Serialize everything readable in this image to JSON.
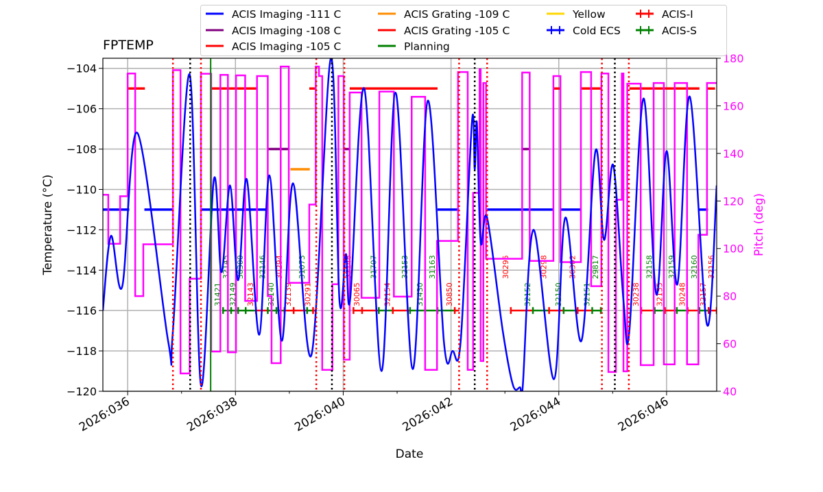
{
  "chart_data": {
    "type": "line",
    "title": "FPTEMP",
    "xlabel": "Date",
    "ylabel": "Temperature (°C)",
    "ylabel_right": "Pitch (deg)",
    "xlim": [
      35.54,
      46.93
    ],
    "ylim": [
      -120,
      -103.5
    ],
    "ylim_right": [
      40,
      180
    ],
    "grid": true,
    "legend_position": "top",
    "x_ticks": [
      {
        "day": 36,
        "label": "2026:036"
      },
      {
        "day": 38,
        "label": "2026:038"
      },
      {
        "day": 40,
        "label": "2026:040"
      },
      {
        "day": 42,
        "label": "2026:042"
      },
      {
        "day": 44,
        "label": "2026:044"
      },
      {
        "day": 46,
        "label": "2026:046"
      }
    ],
    "x_minor_ticks": [
      37,
      39,
      41,
      43,
      45
    ],
    "y_ticks": [
      {
        "v": -120,
        "label": "−120"
      },
      {
        "v": -118,
        "label": "−118"
      },
      {
        "v": -116,
        "label": "−116"
      },
      {
        "v": -114,
        "label": "−114"
      },
      {
        "v": -112,
        "label": "−112"
      },
      {
        "v": -110,
        "label": "−110"
      },
      {
        "v": -108,
        "label": "−108"
      },
      {
        "v": -106,
        "label": "−106"
      },
      {
        "v": -104,
        "label": "−104"
      }
    ],
    "y_right_ticks": [
      {
        "v": 40,
        "label": "40"
      },
      {
        "v": 60,
        "label": "60"
      },
      {
        "v": 80,
        "label": "80"
      },
      {
        "v": 100,
        "label": "100"
      },
      {
        "v": 120,
        "label": "120"
      },
      {
        "v": 140,
        "label": "140"
      },
      {
        "v": 160,
        "label": "160"
      },
      {
        "v": 180,
        "label": "180"
      }
    ],
    "colors": {
      "temperature": "#0000ff",
      "pitch": "#ff00ff",
      "imaging_111": "#0000ff",
      "imaging_108": "#800080",
      "imaging_105": "#ff0000",
      "grating_109": "#ff8c00",
      "grating_105": "#ff0000",
      "planning": "#008000",
      "yellow": "#ffd700",
      "cold_ecs": "#0000ff",
      "acis_i": "#ff0000",
      "acis_s": "#008000",
      "radzone": "#ff0000",
      "perigee": "#000000"
    },
    "legend": [
      {
        "label": "ACIS Imaging -111 C",
        "color": "#0000ff",
        "marker": "line"
      },
      {
        "label": "ACIS Imaging -108 C",
        "color": "#800080",
        "marker": "line"
      },
      {
        "label": "ACIS Imaging -105 C",
        "color": "#ff0000",
        "marker": "line"
      },
      {
        "label": "ACIS Grating -109 C",
        "color": "#ff8c00",
        "marker": "line"
      },
      {
        "label": "ACIS Grating -105 C",
        "color": "#ff0000",
        "marker": "line"
      },
      {
        "label": "Planning",
        "color": "#008000",
        "marker": "line"
      },
      {
        "label": "Yellow",
        "color": "#ffd700",
        "marker": "line"
      },
      {
        "label": "Cold ECS",
        "color": "#0000ff",
        "marker": "errorbar"
      },
      {
        "label": "ACIS-I",
        "color": "#ff0000",
        "marker": "errorbar"
      },
      {
        "label": "ACIS-S",
        "color": "#008000",
        "marker": "errorbar"
      }
    ],
    "temperature": {
      "x": [
        35.54,
        35.69,
        35.9,
        36.18,
        36.75,
        36.84,
        37.15,
        37.36,
        37.6,
        37.74,
        37.9,
        38.05,
        38.21,
        38.44,
        38.63,
        38.86,
        39.07,
        39.41,
        39.77,
        39.93,
        40.05,
        40.13,
        40.39,
        40.71,
        40.97,
        41.29,
        41.57,
        41.87,
        42.03,
        42.18,
        42.39,
        42.44,
        42.48,
        42.55,
        42.67,
        42.96,
        43.15,
        43.28,
        43.33,
        43.53,
        43.91,
        44.12,
        44.42,
        44.68,
        44.84,
        45.01,
        45.2,
        45.31,
        45.57,
        45.81,
        46.0,
        46.2,
        46.43,
        46.75,
        46.93
      ],
      "y": [
        -116,
        -112.3,
        -114.8,
        -107.2,
        -117.5,
        -117,
        -104.3,
        -119.7,
        -109.5,
        -114.1,
        -109.8,
        -114.5,
        -109.5,
        -117.2,
        -109.3,
        -117.5,
        -109.7,
        -118.2,
        -103.5,
        -115.5,
        -113.2,
        -115.4,
        -105,
        -119,
        -105.2,
        -118.9,
        -105.6,
        -117.6,
        -118,
        -117.5,
        -106.6,
        -109,
        -106.7,
        -112.6,
        -111.4,
        -117,
        -119.7,
        -119.8,
        -119.8,
        -112,
        -119.4,
        -111.4,
        -117.5,
        -108.1,
        -112.5,
        -108.8,
        -115.5,
        -117,
        -105.5,
        -115.2,
        -108.1,
        -114.7,
        -105.4,
        -116.7,
        -109.8
      ]
    },
    "pitch_steps": {
      "x": [
        35.54,
        35.64,
        35.86,
        36.0,
        36.14,
        36.29,
        36.84,
        36.98,
        37.15,
        37.36,
        37.55,
        37.72,
        37.86,
        38.01,
        38.18,
        38.4,
        38.6,
        38.67,
        38.84,
        38.99,
        39.37,
        39.49,
        39.55,
        39.61,
        39.8,
        39.91,
        40.01,
        40.12,
        40.34,
        40.67,
        40.94,
        41.27,
        41.52,
        41.74,
        42.13,
        42.31,
        42.41,
        42.53,
        42.55,
        42.6,
        42.65,
        43.32,
        43.46,
        43.9,
        44.03,
        44.41,
        44.6,
        44.79,
        44.92,
        45.06,
        45.17,
        45.2,
        45.27,
        45.52,
        45.76,
        45.95,
        46.15,
        46.38,
        46.59,
        46.75
      ],
      "y": [
        122.6,
        102,
        122,
        173.6,
        80,
        101.8,
        175,
        47.5,
        87.3,
        173.5,
        56.7,
        173,
        56.4,
        172.8,
        78,
        172.5,
        80,
        51.8,
        176.5,
        85.6,
        118.5,
        176.5,
        172.5,
        49,
        85,
        172.5,
        53.3,
        165.6,
        79.3,
        166,
        79.8,
        163.8,
        49,
        103.2,
        174.2,
        49,
        123.4,
        175.4,
        52.7,
        169.6,
        95.7,
        174,
        94.8,
        172.5,
        94.3,
        174.2,
        84.2,
        173.6,
        48.1,
        120.5,
        173.6,
        48.4,
        169.3,
        51,
        169.6,
        51.3,
        169.6,
        51.3,
        105.8,
        169.6
      ]
    },
    "limits": [
      {
        "name": "imaging-111",
        "value": -111,
        "color": "#0000ff",
        "ranges": [
          [
            35.54,
            36.03
          ],
          [
            36.31,
            36.84
          ],
          [
            37.36,
            38.58
          ],
          [
            41.75,
            42.15
          ],
          [
            42.67,
            43.9
          ],
          [
            44.03,
            44.42
          ],
          [
            46.58,
            46.77
          ]
        ]
      },
      {
        "name": "imaging-105",
        "value": -105,
        "color": "#ff0000",
        "ranges": [
          [
            36.0,
            36.32
          ],
          [
            37.55,
            38.4
          ],
          [
            39.37,
            39.49
          ],
          [
            40.12,
            41.75
          ],
          [
            43.9,
            44.04
          ],
          [
            44.41,
            44.79
          ],
          [
            45.31,
            46.61
          ],
          [
            46.74,
            46.9
          ]
        ]
      },
      {
        "name": "imaging-108",
        "value": -108,
        "color": "#800080",
        "ranges": [
          [
            38.6,
            38.99
          ],
          [
            40.01,
            40.12
          ],
          [
            43.33,
            43.46
          ]
        ]
      },
      {
        "name": "grating-109",
        "value": -109,
        "color": "#ff8c00",
        "ranges": [
          [
            39.02,
            39.38
          ]
        ]
      }
    ],
    "radzones": [
      [
        36.84,
        37.36
      ],
      [
        39.5,
        40.02
      ],
      [
        42.15,
        42.67
      ],
      [
        44.8,
        45.3
      ]
    ],
    "perigees": [
      37.16,
      39.79,
      42.44,
      45.04
    ],
    "planning_line": 37.54,
    "obsid_level": -116,
    "observations": [
      {
        "obsid": "31421",
        "inst": "ACIS-S",
        "start": 37.77
      },
      {
        "obsid": "32145",
        "inst": "ACIS-S",
        "start": 37.92
      },
      {
        "obsid": "32149",
        "inst": "ACIS-S",
        "start": 38.05
      },
      {
        "obsid": "30300",
        "inst": "ACIS-S",
        "start": 38.19
      },
      {
        "obsid": "32143",
        "inst": "ACIS-I",
        "start": 38.38
      },
      {
        "obsid": "32146",
        "inst": "ACIS-S",
        "start": 38.6
      },
      {
        "obsid": "32140",
        "inst": "ACIS-S",
        "start": 38.76
      },
      {
        "obsid": "30294",
        "inst": "ACIS-I",
        "start": 38.91
      },
      {
        "obsid": "32139",
        "inst": "ACIS-I",
        "start": 39.08
      },
      {
        "obsid": "31073",
        "inst": "ACIS-S",
        "start": 39.33
      },
      {
        "obsid": "30291",
        "inst": "ACIS-I",
        "start": 39.44
      },
      {
        "obsid": "32148",
        "inst": "ACIS-I",
        "start": 40.19
      },
      {
        "obsid": "30065",
        "inst": "ACIS-I",
        "start": 40.35
      },
      {
        "obsid": "31707",
        "inst": "ACIS-S",
        "start": 40.66
      },
      {
        "obsid": "32154",
        "inst": "ACIS-I",
        "start": 40.92
      },
      {
        "obsid": "32153",
        "inst": "ACIS-S",
        "start": 41.24
      },
      {
        "obsid": "31430",
        "inst": "ACIS-S",
        "start": 41.52
      },
      {
        "obsid": "31163",
        "inst": "ACIS-S",
        "start": 41.75
      },
      {
        "obsid": "30850",
        "inst": "ACIS-I",
        "start": 42.07
      },
      {
        "obsid": "30295",
        "inst": "ACIS-I",
        "start": 43.11
      },
      {
        "obsid": "32152",
        "inst": "ACIS-S",
        "start": 43.52
      },
      {
        "obsid": "30298",
        "inst": "ACIS-I",
        "start": 43.82
      },
      {
        "obsid": "32150",
        "inst": "ACIS-S",
        "start": 44.09
      },
      {
        "obsid": "30302",
        "inst": "ACIS-I",
        "start": 44.35
      },
      {
        "obsid": "32151",
        "inst": "ACIS-S",
        "start": 44.62
      },
      {
        "obsid": "29817",
        "inst": "ACIS-S",
        "start": 44.78
      },
      {
        "obsid": "30238",
        "inst": "ACIS-I",
        "start": 45.53
      },
      {
        "obsid": "32158",
        "inst": "ACIS-S",
        "start": 45.78
      },
      {
        "obsid": "32155",
        "inst": "ACIS-I",
        "start": 45.97
      },
      {
        "obsid": "32159",
        "inst": "ACIS-S",
        "start": 46.19
      },
      {
        "obsid": "30248",
        "inst": "ACIS-I",
        "start": 46.39
      },
      {
        "obsid": "32160",
        "inst": "ACIS-S",
        "start": 46.61
      },
      {
        "obsid": "32157",
        "inst": "ACIS-I",
        "start": 46.78
      },
      {
        "obsid": "32156",
        "inst": "ACIS-I",
        "start": 46.93
      }
    ]
  }
}
